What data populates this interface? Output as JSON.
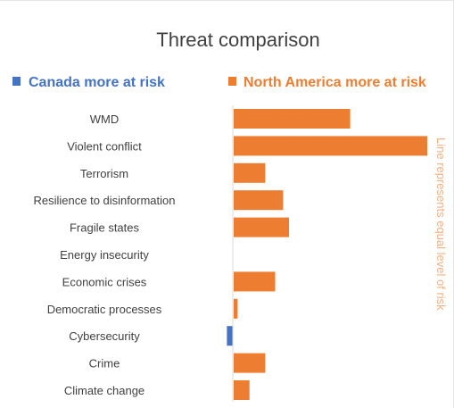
{
  "chart_data": {
    "type": "bar",
    "orientation": "horizontal",
    "title": "Threat comparison",
    "legend": {
      "position": "top",
      "entries": [
        {
          "name": "Canada more at risk",
          "color": "#4472c4"
        },
        {
          "name": "North America more at risk",
          "color": "#ed7d31"
        }
      ]
    },
    "annotation": "Line represents equal level of risk",
    "categories": [
      "WMD",
      "Violent conflict",
      "Terrorism",
      "Resilience to disinformation",
      "Fragile states",
      "Energy insecurity",
      "Economic crises",
      "Democratic processes",
      "Cybersecurity",
      "Crime",
      "Climate change"
    ],
    "values": [
      0.59,
      0.98,
      0.16,
      0.25,
      0.28,
      0.0,
      0.21,
      0.02,
      -0.03,
      0.16,
      0.08
    ],
    "xlim": [
      -0.05,
      1.05
    ],
    "grid": false,
    "colors": {
      "negative": "#4472c4",
      "positive": "#ed7d31",
      "title": "#404040",
      "label": "#404040",
      "annotation": "#f4b183",
      "axis": "#d9d9d9",
      "frame": "#e6e6e6"
    }
  }
}
